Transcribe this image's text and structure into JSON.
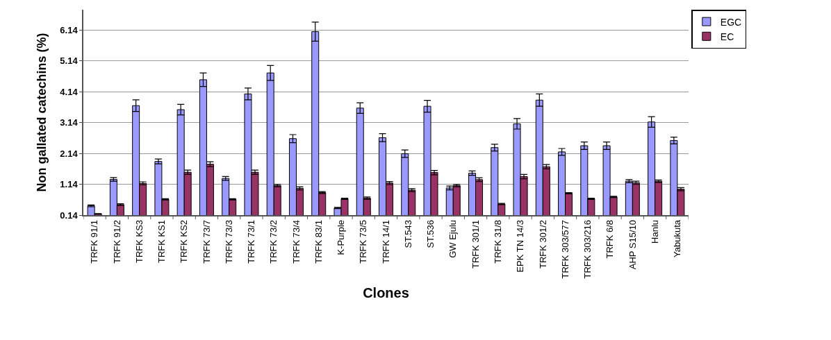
{
  "chart_data": {
    "type": "bar",
    "xlabel": "Clones",
    "ylabel": "Non gallated catechins (%)",
    "categories": [
      "TRFK 91/1",
      "TRFK 91/2",
      "TRFK KS3",
      "TRFK KS1",
      "TRFK KS2",
      "TRFK 73/7",
      "TRFK 73/3",
      "TRFK 73/1",
      "TRFK 73/2",
      "TRFK 73/4",
      "TRFK 83/1",
      "K-Purple",
      "TRFK 73/5",
      "TRFK 14/1",
      "ST.543",
      "ST.536",
      "GW Ejulu",
      "TRFK 301/1",
      "TRFK 31/8",
      "EPK TN 14/3",
      "TRFK 301/2",
      "TRFK 303/577",
      "TRFK 303/216",
      "TRFK 6/8",
      "AHP S15/10",
      "Hanlu",
      "Yabukuta"
    ],
    "series": [
      {
        "name": "EGC",
        "color": "#9999ff",
        "values": [
          0.44,
          1.3,
          3.69,
          1.88,
          3.56,
          4.53,
          1.33,
          4.07,
          4.75,
          2.62,
          6.09,
          0.37,
          3.61,
          2.65,
          2.13,
          3.67,
          1.02,
          1.5,
          2.33,
          3.1,
          3.87,
          2.19,
          2.39,
          2.39,
          1.24,
          3.16,
          2.56
        ],
        "errors": [
          0.03,
          0.06,
          0.19,
          0.08,
          0.17,
          0.22,
          0.06,
          0.19,
          0.24,
          0.13,
          0.31,
          0.02,
          0.17,
          0.13,
          0.12,
          0.19,
          0.06,
          0.07,
          0.11,
          0.17,
          0.2,
          0.11,
          0.12,
          0.12,
          0.05,
          0.17,
          0.11
        ]
      },
      {
        "name": "EC",
        "color": "#993366",
        "values": [
          0.18,
          0.48,
          1.17,
          0.65,
          1.53,
          1.79,
          0.65,
          1.53,
          1.1,
          1.01,
          0.87,
          0.67,
          0.69,
          1.18,
          0.95,
          1.52,
          1.1,
          1.29,
          0.5,
          1.39,
          1.71,
          0.85,
          0.67,
          0.73,
          1.19,
          1.24,
          0.98
        ],
        "errors": [
          0.01,
          0.03,
          0.05,
          0.02,
          0.07,
          0.08,
          0.02,
          0.07,
          0.04,
          0.05,
          0.03,
          0.02,
          0.04,
          0.05,
          0.05,
          0.07,
          0.04,
          0.06,
          0.02,
          0.07,
          0.07,
          0.02,
          0.02,
          0.02,
          0.05,
          0.04,
          0.05
        ]
      }
    ],
    "ylim": [
      0.14,
      6.8
    ],
    "yticks": [
      0.14,
      1.14,
      2.14,
      3.14,
      4.14,
      5.14,
      6.14
    ],
    "grid": "y",
    "legend": "top right"
  }
}
